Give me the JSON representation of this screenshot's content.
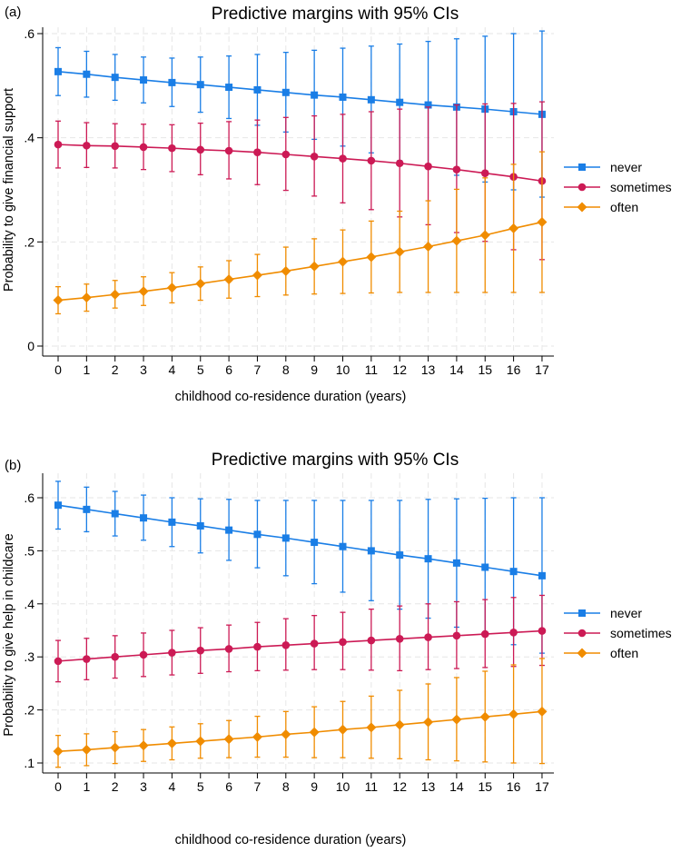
{
  "chart_data": [
    {
      "type": "line",
      "panel_label": "(a)",
      "title": "Predictive margins with 95% CIs",
      "xlabel": "childhood co-residence duration (years)",
      "ylabel": "Probability to give financial support",
      "x": [
        0,
        1,
        2,
        3,
        4,
        5,
        6,
        7,
        8,
        9,
        10,
        11,
        12,
        13,
        14,
        15,
        16,
        17
      ],
      "xticks": [
        "0",
        "1",
        "2",
        "3",
        "4",
        "5",
        "6",
        "7",
        "8",
        "9",
        "10",
        "11",
        "12",
        "13",
        "14",
        "15",
        "16",
        "17"
      ],
      "ylim": [
        0,
        0.62
      ],
      "yticks": [
        0,
        0.2,
        0.4,
        0.6
      ],
      "ytick_labels": [
        "0",
        ".2",
        ".4",
        ".6"
      ],
      "legend": "right",
      "series": [
        {
          "name": "never",
          "color": "#1a7ee6",
          "marker": "square",
          "values": [
            0.527,
            0.522,
            0.516,
            0.511,
            0.506,
            0.502,
            0.497,
            0.492,
            0.487,
            0.482,
            0.478,
            0.473,
            0.468,
            0.463,
            0.459,
            0.455,
            0.45,
            0.445
          ],
          "lower": [
            0.481,
            0.478,
            0.472,
            0.467,
            0.46,
            0.449,
            0.437,
            0.424,
            0.411,
            0.397,
            0.384,
            0.371,
            0.356,
            0.342,
            0.328,
            0.315,
            0.3,
            0.286
          ],
          "upper": [
            0.573,
            0.566,
            0.56,
            0.555,
            0.553,
            0.555,
            0.557,
            0.56,
            0.564,
            0.568,
            0.572,
            0.576,
            0.58,
            0.585,
            0.59,
            0.595,
            0.6,
            0.605
          ]
        },
        {
          "name": "sometimes",
          "color": "#cc1a55",
          "marker": "circle",
          "values": [
            0.387,
            0.385,
            0.384,
            0.382,
            0.38,
            0.377,
            0.375,
            0.372,
            0.368,
            0.364,
            0.36,
            0.356,
            0.351,
            0.345,
            0.339,
            0.332,
            0.325,
            0.317
          ],
          "lower": [
            0.342,
            0.343,
            0.342,
            0.339,
            0.335,
            0.329,
            0.321,
            0.31,
            0.299,
            0.288,
            0.275,
            0.262,
            0.248,
            0.233,
            0.218,
            0.201,
            0.185,
            0.166
          ],
          "upper": [
            0.432,
            0.429,
            0.427,
            0.426,
            0.425,
            0.428,
            0.431,
            0.434,
            0.439,
            0.442,
            0.445,
            0.45,
            0.455,
            0.459,
            0.463,
            0.465,
            0.466,
            0.469
          ]
        },
        {
          "name": "often",
          "color": "#f08c00",
          "marker": "diamond",
          "values": [
            0.088,
            0.093,
            0.099,
            0.105,
            0.112,
            0.12,
            0.128,
            0.136,
            0.144,
            0.153,
            0.162,
            0.171,
            0.181,
            0.191,
            0.202,
            0.213,
            0.226,
            0.238
          ],
          "lower": [
            0.062,
            0.067,
            0.073,
            0.078,
            0.083,
            0.088,
            0.092,
            0.095,
            0.098,
            0.1,
            0.101,
            0.102,
            0.103,
            0.103,
            0.103,
            0.103,
            0.103,
            0.103
          ],
          "upper": [
            0.114,
            0.119,
            0.126,
            0.133,
            0.141,
            0.152,
            0.164,
            0.176,
            0.19,
            0.206,
            0.223,
            0.24,
            0.259,
            0.279,
            0.301,
            0.323,
            0.349,
            0.373
          ]
        }
      ]
    },
    {
      "type": "line",
      "panel_label": "(b)",
      "title": "Predictive margins with 95% CIs",
      "xlabel": "childhood co-residence duration (years)",
      "ylabel": "Probability to give help in childcare",
      "x": [
        0,
        1,
        2,
        3,
        4,
        5,
        6,
        7,
        8,
        9,
        10,
        11,
        12,
        13,
        14,
        15,
        16,
        17
      ],
      "xticks": [
        "0",
        "1",
        "2",
        "3",
        "4",
        "5",
        "6",
        "7",
        "8",
        "9",
        "10",
        "11",
        "12",
        "13",
        "14",
        "15",
        "16",
        "17"
      ],
      "ylim": [
        0.09,
        0.64
      ],
      "yticks": [
        0.1,
        0.2,
        0.3,
        0.4,
        0.5,
        0.6
      ],
      "ytick_labels": [
        ".1",
        ".2",
        ".3",
        ".4",
        ".5",
        ".6"
      ],
      "legend": "right",
      "series": [
        {
          "name": "never",
          "color": "#1a7ee6",
          "marker": "square",
          "values": [
            0.586,
            0.578,
            0.57,
            0.562,
            0.554,
            0.547,
            0.539,
            0.531,
            0.524,
            0.516,
            0.508,
            0.5,
            0.492,
            0.485,
            0.477,
            0.469,
            0.461,
            0.453
          ],
          "lower": [
            0.541,
            0.536,
            0.528,
            0.52,
            0.508,
            0.496,
            0.482,
            0.468,
            0.453,
            0.438,
            0.422,
            0.406,
            0.39,
            0.373,
            0.356,
            0.34,
            0.323,
            0.307
          ],
          "upper": [
            0.631,
            0.62,
            0.612,
            0.605,
            0.6,
            0.598,
            0.597,
            0.595,
            0.595,
            0.595,
            0.595,
            0.595,
            0.595,
            0.597,
            0.598,
            0.599,
            0.6,
            0.6
          ]
        },
        {
          "name": "sometimes",
          "color": "#cc1a55",
          "marker": "circle",
          "values": [
            0.292,
            0.296,
            0.3,
            0.304,
            0.308,
            0.312,
            0.315,
            0.319,
            0.322,
            0.325,
            0.328,
            0.331,
            0.334,
            0.337,
            0.34,
            0.343,
            0.346,
            0.349
          ],
          "lower": [
            0.253,
            0.257,
            0.26,
            0.263,
            0.266,
            0.269,
            0.272,
            0.274,
            0.275,
            0.276,
            0.276,
            0.275,
            0.274,
            0.276,
            0.278,
            0.28,
            0.282,
            0.284
          ],
          "upper": [
            0.331,
            0.335,
            0.34,
            0.345,
            0.35,
            0.355,
            0.36,
            0.365,
            0.372,
            0.378,
            0.384,
            0.39,
            0.396,
            0.4,
            0.404,
            0.408,
            0.412,
            0.416
          ]
        },
        {
          "name": "often",
          "color": "#f08c00",
          "marker": "diamond",
          "values": [
            0.122,
            0.125,
            0.129,
            0.133,
            0.137,
            0.141,
            0.145,
            0.149,
            0.154,
            0.158,
            0.163,
            0.167,
            0.172,
            0.177,
            0.182,
            0.187,
            0.192,
            0.197
          ],
          "lower": [
            0.092,
            0.095,
            0.099,
            0.103,
            0.106,
            0.109,
            0.11,
            0.111,
            0.111,
            0.11,
            0.11,
            0.109,
            0.108,
            0.106,
            0.104,
            0.102,
            0.1,
            0.099
          ],
          "upper": [
            0.152,
            0.155,
            0.159,
            0.163,
            0.168,
            0.174,
            0.18,
            0.188,
            0.197,
            0.206,
            0.216,
            0.226,
            0.237,
            0.249,
            0.261,
            0.273,
            0.285,
            0.297
          ]
        }
      ]
    }
  ]
}
